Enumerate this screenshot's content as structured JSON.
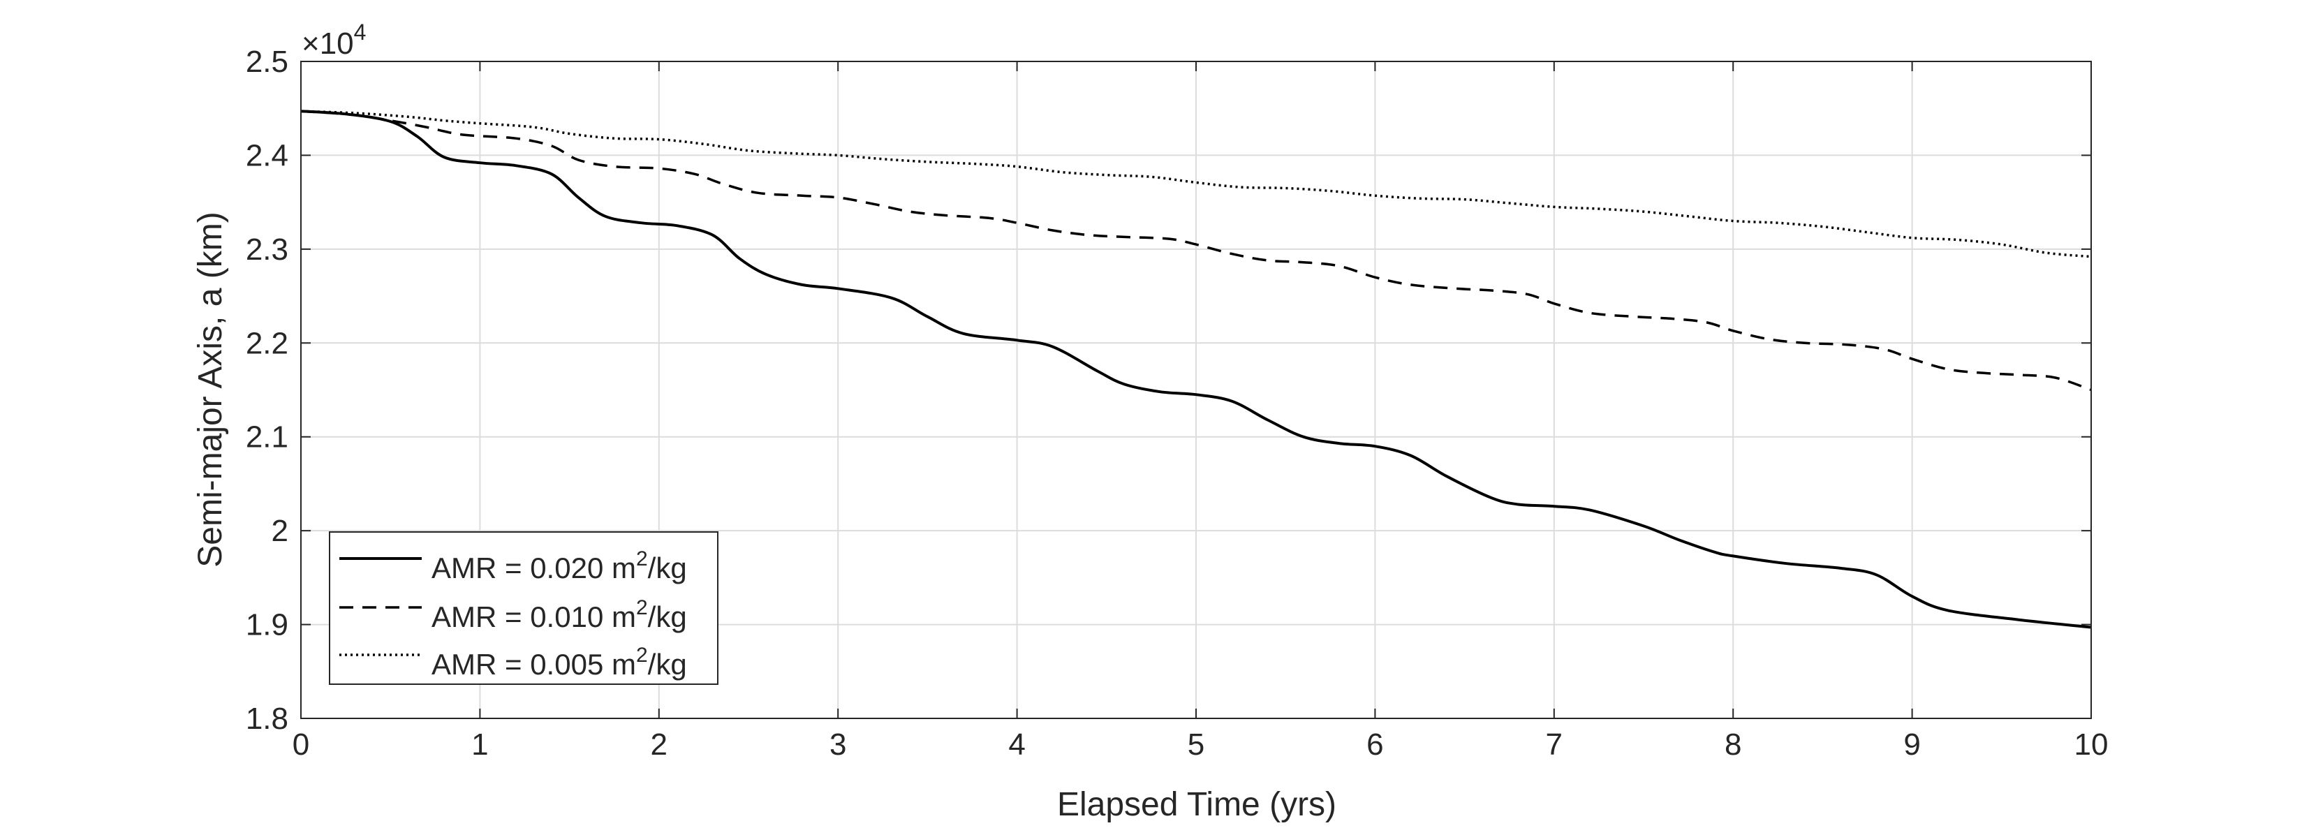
{
  "chart_data": {
    "type": "line",
    "title": "",
    "xlabel": "Elapsed Time (yrs)",
    "ylabel": "Semi-major Axis, a (km)",
    "y_exponent_label": "×10",
    "y_exponent_power": "4",
    "xlim": [
      0,
      10
    ],
    "ylim": [
      1.8,
      2.5
    ],
    "x_ticks": [
      "0",
      "1",
      "2",
      "3",
      "4",
      "5",
      "6",
      "7",
      "8",
      "9",
      "10"
    ],
    "y_ticks": [
      "1.8",
      "1.9",
      "2",
      "2.1",
      "2.2",
      "2.3",
      "2.4",
      "2.5"
    ],
    "grid": true,
    "legend_position": "bottom-left",
    "series": [
      {
        "name": "AMR = 0.020 m²/kg",
        "label_prefix": "AMR = 0.020 m",
        "label_sup": "2",
        "label_suffix": "/kg",
        "style": "solid",
        "x": [
          0,
          0.25,
          0.5,
          0.65,
          0.8,
          1.0,
          1.2,
          1.4,
          1.55,
          1.7,
          1.9,
          2.1,
          2.3,
          2.45,
          2.6,
          2.8,
          3.0,
          3.3,
          3.5,
          3.7,
          4.0,
          4.2,
          4.45,
          4.6,
          4.8,
          5.0,
          5.2,
          5.4,
          5.6,
          5.8,
          6.0,
          6.2,
          6.4,
          6.65,
          6.8,
          7.0,
          7.2,
          7.5,
          7.7,
          7.9,
          8.0,
          8.3,
          8.6,
          8.8,
          9.0,
          9.2,
          9.6,
          10.0
        ],
        "y": [
          2.447,
          2.444,
          2.436,
          2.42,
          2.398,
          2.392,
          2.389,
          2.38,
          2.355,
          2.335,
          2.328,
          2.325,
          2.315,
          2.29,
          2.273,
          2.262,
          2.258,
          2.248,
          2.228,
          2.21,
          2.203,
          2.196,
          2.17,
          2.156,
          2.148,
          2.145,
          2.138,
          2.118,
          2.1,
          2.093,
          2.09,
          2.08,
          2.058,
          2.035,
          2.028,
          2.026,
          2.022,
          2.005,
          1.99,
          1.977,
          1.973,
          1.965,
          1.96,
          1.953,
          1.93,
          1.915,
          1.905,
          1.897
        ]
      },
      {
        "name": "AMR = 0.010 m²/kg",
        "label_prefix": "AMR = 0.010 m",
        "label_sup": "2",
        "label_suffix": "/kg",
        "style": "dashed",
        "x": [
          0,
          0.3,
          0.5,
          0.7,
          0.9,
          1.2,
          1.4,
          1.55,
          1.75,
          2.0,
          2.2,
          2.35,
          2.55,
          2.8,
          3.0,
          3.2,
          3.4,
          3.6,
          3.85,
          4.0,
          4.2,
          4.4,
          4.6,
          4.85,
          5.0,
          5.2,
          5.4,
          5.6,
          5.8,
          6.0,
          6.2,
          6.45,
          6.65,
          6.85,
          7.0,
          7.2,
          7.45,
          7.65,
          7.85,
          8.0,
          8.2,
          8.4,
          8.65,
          8.85,
          9.0,
          9.2,
          9.4,
          9.6,
          9.8,
          10.0
        ],
        "y": [
          2.447,
          2.443,
          2.437,
          2.43,
          2.422,
          2.418,
          2.41,
          2.395,
          2.388,
          2.386,
          2.38,
          2.37,
          2.36,
          2.357,
          2.355,
          2.348,
          2.34,
          2.336,
          2.333,
          2.328,
          2.32,
          2.315,
          2.313,
          2.311,
          2.305,
          2.295,
          2.288,
          2.286,
          2.282,
          2.27,
          2.262,
          2.258,
          2.256,
          2.252,
          2.242,
          2.232,
          2.228,
          2.226,
          2.222,
          2.213,
          2.204,
          2.2,
          2.198,
          2.193,
          2.183,
          2.172,
          2.168,
          2.166,
          2.163,
          2.15
        ]
      },
      {
        "name": "AMR = 0.005 m²/kg",
        "label_prefix": "AMR = 0.005 m",
        "label_sup": "2",
        "label_suffix": "/kg",
        "style": "dotted",
        "x": [
          0,
          0.3,
          0.6,
          0.8,
          1.0,
          1.3,
          1.5,
          1.75,
          2.0,
          2.25,
          2.5,
          2.75,
          3.0,
          3.25,
          3.5,
          3.75,
          4.0,
          4.25,
          4.5,
          4.75,
          5.0,
          5.25,
          5.5,
          5.75,
          6.0,
          6.25,
          6.5,
          6.75,
          7.0,
          7.25,
          7.5,
          7.75,
          8.0,
          8.25,
          8.5,
          8.75,
          9.0,
          9.25,
          9.5,
          9.75,
          10.0
        ],
        "y": [
          2.447,
          2.445,
          2.441,
          2.437,
          2.434,
          2.43,
          2.423,
          2.418,
          2.417,
          2.412,
          2.405,
          2.402,
          2.4,
          2.396,
          2.393,
          2.391,
          2.388,
          2.382,
          2.379,
          2.377,
          2.371,
          2.366,
          2.365,
          2.362,
          2.357,
          2.354,
          2.353,
          2.349,
          2.345,
          2.343,
          2.34,
          2.335,
          2.33,
          2.328,
          2.324,
          2.318,
          2.312,
          2.31,
          2.305,
          2.296,
          2.292
        ]
      }
    ]
  }
}
